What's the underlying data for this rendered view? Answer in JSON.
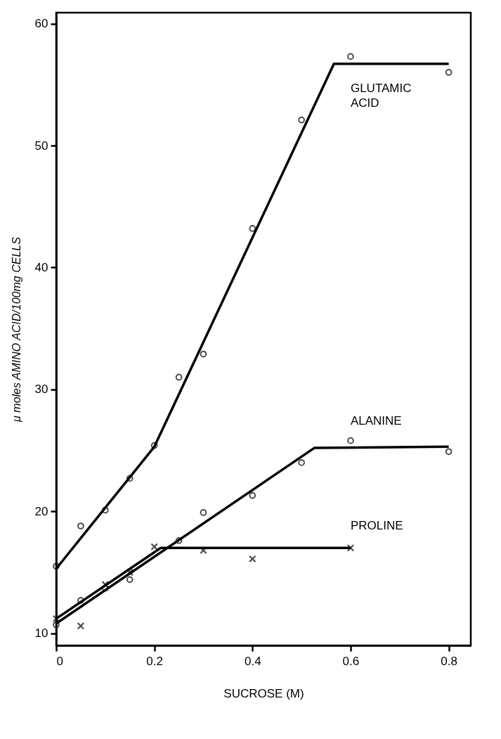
{
  "chart_data": {
    "type": "scatter",
    "xlabel": "SUCROSE (M)",
    "ylabel": "μ moles AMINO ACID/100mg CELLS",
    "xlim": [
      0,
      0.845
    ],
    "ylim": [
      9,
      60.9
    ],
    "xticks": [
      0,
      0.2,
      0.4,
      0.6,
      0.8
    ],
    "yticks": [
      10,
      20,
      30,
      40,
      50,
      60
    ],
    "grid": false,
    "series": [
      {
        "type": "scatter",
        "name": "GLUTAMIC ACID",
        "marker": "circle",
        "color": "#000000",
        "x": [
          0,
          0.05,
          0.1,
          0.15,
          0.2,
          0.25,
          0.3,
          0.4,
          0.5,
          0.6,
          0.8
        ],
        "values": [
          15.5,
          18.8,
          20.1,
          22.7,
          25.4,
          31.0,
          32.9,
          43.2,
          52.1,
          57.3,
          56.0
        ]
      },
      {
        "type": "line",
        "color": "#000000",
        "x": [
          0,
          0.2,
          0.566,
          0.8
        ],
        "values": [
          15.3,
          25.3,
          56.7,
          56.7
        ]
      },
      {
        "type": "scatter",
        "name": "ALANINE",
        "marker": "circle",
        "color": "#000000",
        "x": [
          0,
          0.05,
          0.1,
          0.15,
          0.25,
          0.3,
          0.4,
          0.5,
          0.6,
          0.8
        ],
        "values": [
          10.7,
          12.7,
          13.7,
          14.4,
          17.6,
          19.9,
          21.3,
          24.0,
          25.8,
          24.9
        ]
      },
      {
        "type": "line",
        "color": "#000000",
        "x": [
          0,
          0.526,
          0.8
        ],
        "values": [
          10.8,
          25.2,
          25.3
        ]
      },
      {
        "type": "scatter",
        "name": "PROLINE",
        "marker": "cross",
        "color": "#000000",
        "x": [
          0,
          0.05,
          0.1,
          0.15,
          0.2,
          0.3,
          0.4,
          0.6
        ],
        "values": [
          11.2,
          10.6,
          14.0,
          15.0,
          17.1,
          16.8,
          16.1,
          17.0
        ]
      },
      {
        "type": "line",
        "color": "#000000",
        "x": [
          0,
          0.213,
          0.6
        ],
        "values": [
          11.2,
          17.0,
          17.0
        ]
      }
    ]
  }
}
